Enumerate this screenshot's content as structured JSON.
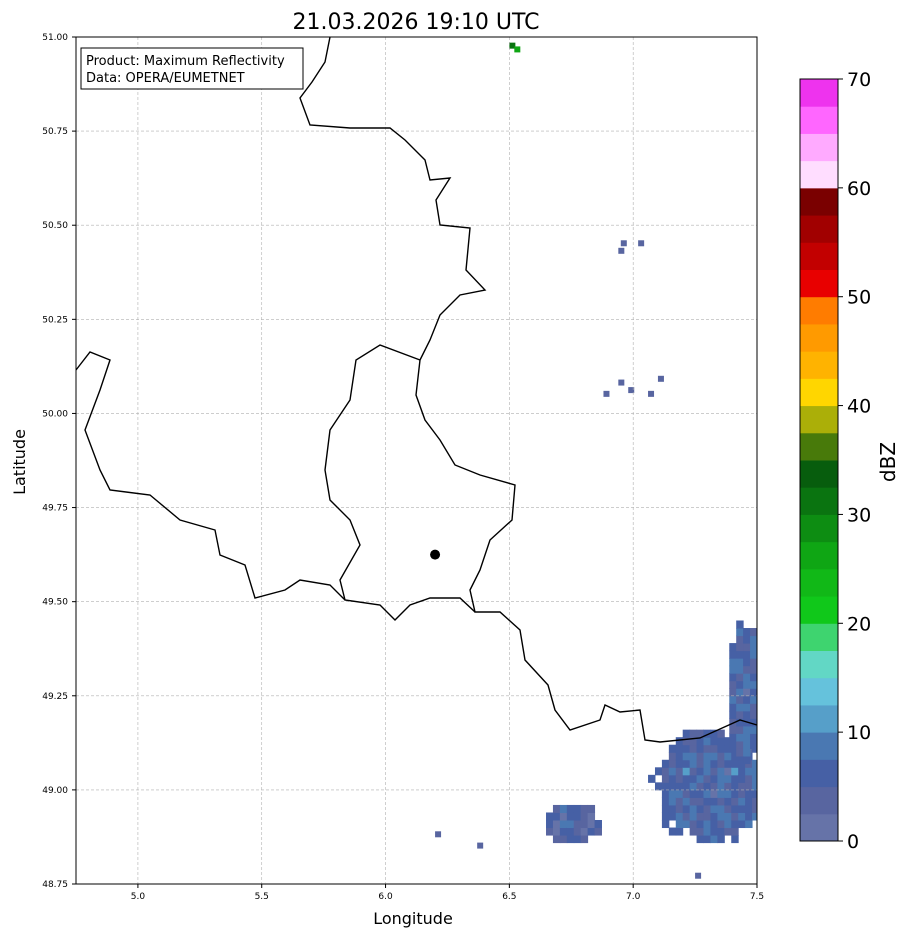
{
  "title": "21.03.2026 19:10 UTC",
  "legend_box": {
    "line1": "Product: Maximum Reflectivity",
    "line2": "Data: OPERA/EUMETNET"
  },
  "chart_data": {
    "type": "heatmap",
    "xlabel": "Longitude",
    "ylabel": "Latitude",
    "xlim": [
      4.75,
      7.5
    ],
    "ylim": [
      48.75,
      51.0
    ],
    "xticks": [
      "5.0",
      "5.5",
      "6.0",
      "6.5",
      "7.0",
      "7.5"
    ],
    "xtick_values": [
      5.0,
      5.5,
      6.0,
      6.5,
      7.0,
      7.5
    ],
    "yticks": [
      "48.75",
      "49.00",
      "49.25",
      "49.50",
      "49.75",
      "50.00",
      "50.25",
      "50.50",
      "50.75",
      "51.00"
    ],
    "ytick_values": [
      48.75,
      49.0,
      49.25,
      49.5,
      49.75,
      50.0,
      50.25,
      50.5,
      50.75,
      51.0
    ],
    "grid": true,
    "marker": {
      "lon": 6.2,
      "lat": 49.625
    },
    "colorbar": {
      "label": "dBZ",
      "ticks": [
        "0",
        "10",
        "20",
        "30",
        "40",
        "50",
        "60",
        "70"
      ],
      "tick_values": [
        0,
        10,
        20,
        30,
        40,
        50,
        60,
        70
      ],
      "range": [
        0,
        70
      ],
      "step": 2.5,
      "colors": [
        "#6673a8",
        "#5865a0",
        "#4660a5",
        "#4a78b2",
        "#569fc9",
        "#65c2dc",
        "#62d7c5",
        "#3ed46f",
        "#10c81a",
        "#11b817",
        "#0fa614",
        "#0d8d12",
        "#0a7410",
        "#075d0d",
        "#487a0a",
        "#abaf08",
        "#ffd600",
        "#ffb300",
        "#ff9a00",
        "#ff7c00",
        "#e80000",
        "#c20000",
        "#a10000",
        "#7a0000",
        "#ffddff",
        "#ffaaff",
        "#ff66ff",
        "#ee33ee"
      ]
    },
    "echo_regions": [
      {
        "lon": 7.3,
        "lat": 49.0,
        "rlon": 0.24,
        "rlat": 0.16,
        "dbz": 5
      },
      {
        "lon": 7.44,
        "lat": 49.25,
        "rlon": 0.08,
        "rlat": 0.2,
        "dbz": 5
      },
      {
        "lon": 6.74,
        "lat": 48.9,
        "rlon": 0.12,
        "rlat": 0.06,
        "dbz": 4
      }
    ],
    "echo_points": [
      [
        6.2,
        48.88,
        3
      ],
      [
        6.37,
        48.85,
        3
      ],
      [
        6.95,
        50.45,
        4
      ],
      [
        6.94,
        50.43,
        4
      ],
      [
        7.02,
        50.45,
        4
      ],
      [
        6.94,
        50.08,
        3
      ],
      [
        6.88,
        50.05,
        3
      ],
      [
        7.1,
        50.09,
        4
      ],
      [
        7.06,
        50.05,
        3
      ],
      [
        6.98,
        50.06,
        3
      ],
      [
        6.5,
        50.975,
        30
      ],
      [
        6.52,
        50.965,
        25
      ],
      [
        7.25,
        48.77,
        3
      ]
    ]
  }
}
